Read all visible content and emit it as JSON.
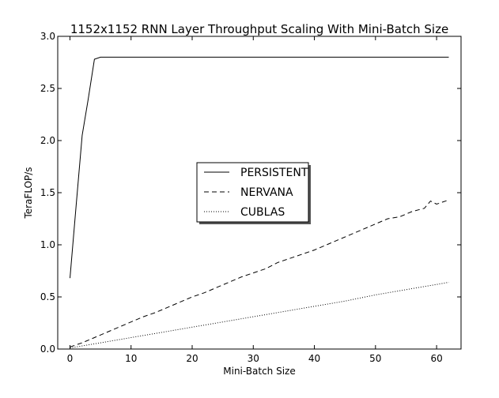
{
  "chart_data": {
    "type": "line",
    "title": "1152x1152 RNN Layer Throughput Scaling With Mini-Batch Size",
    "xlabel": "Mini-Batch Size",
    "ylabel": "TeraFLOP/s",
    "xlim": [
      -2,
      64
    ],
    "ylim": [
      0,
      3
    ],
    "xticks": [
      0,
      10,
      20,
      30,
      40,
      50,
      60
    ],
    "yticks": [
      0.0,
      0.5,
      1.0,
      1.5,
      2.0,
      2.5,
      3.0
    ],
    "xtick_labels": [
      "0",
      "10",
      "20",
      "30",
      "40",
      "50",
      "60"
    ],
    "ytick_labels": [
      "0.0",
      "0.5",
      "1.0",
      "1.5",
      "2.0",
      "2.5",
      "3.0"
    ],
    "grid": false,
    "legend_position": "center",
    "series": [
      {
        "name": "PERSISTENT",
        "style": "solid",
        "x": [
          0,
          1,
          2,
          3,
          4,
          5,
          6,
          8,
          10,
          15,
          20,
          22,
          25,
          28,
          30,
          35,
          40,
          45,
          50,
          55,
          60,
          62
        ],
        "y": [
          0.68,
          1.37,
          2.05,
          2.4,
          2.78,
          2.8,
          2.8,
          2.8,
          2.8,
          2.8,
          2.8,
          2.8,
          2.8,
          2.8,
          2.8,
          2.8,
          2.8,
          2.8,
          2.8,
          2.8,
          2.8,
          2.8
        ]
      },
      {
        "name": "NERVANA",
        "style": "dashed",
        "x": [
          0,
          2,
          4,
          6,
          8,
          10,
          12,
          14,
          16,
          18,
          20,
          22,
          24,
          26,
          28,
          30,
          32,
          34,
          36,
          38,
          40,
          42,
          44,
          46,
          48,
          50,
          52,
          54,
          56,
          58,
          59,
          60,
          62
        ],
        "y": [
          0.02,
          0.06,
          0.11,
          0.16,
          0.21,
          0.26,
          0.31,
          0.35,
          0.4,
          0.45,
          0.5,
          0.54,
          0.59,
          0.64,
          0.69,
          0.73,
          0.77,
          0.83,
          0.87,
          0.91,
          0.95,
          1.0,
          1.05,
          1.1,
          1.15,
          1.2,
          1.25,
          1.27,
          1.32,
          1.35,
          1.42,
          1.39,
          1.43
        ]
      },
      {
        "name": "CUBLAS",
        "style": "dotted",
        "x": [
          0,
          5,
          10,
          15,
          20,
          25,
          30,
          35,
          40,
          45,
          50,
          55,
          60,
          62
        ],
        "y": [
          0.01,
          0.06,
          0.11,
          0.16,
          0.21,
          0.26,
          0.31,
          0.36,
          0.41,
          0.46,
          0.52,
          0.57,
          0.62,
          0.64
        ]
      }
    ]
  }
}
